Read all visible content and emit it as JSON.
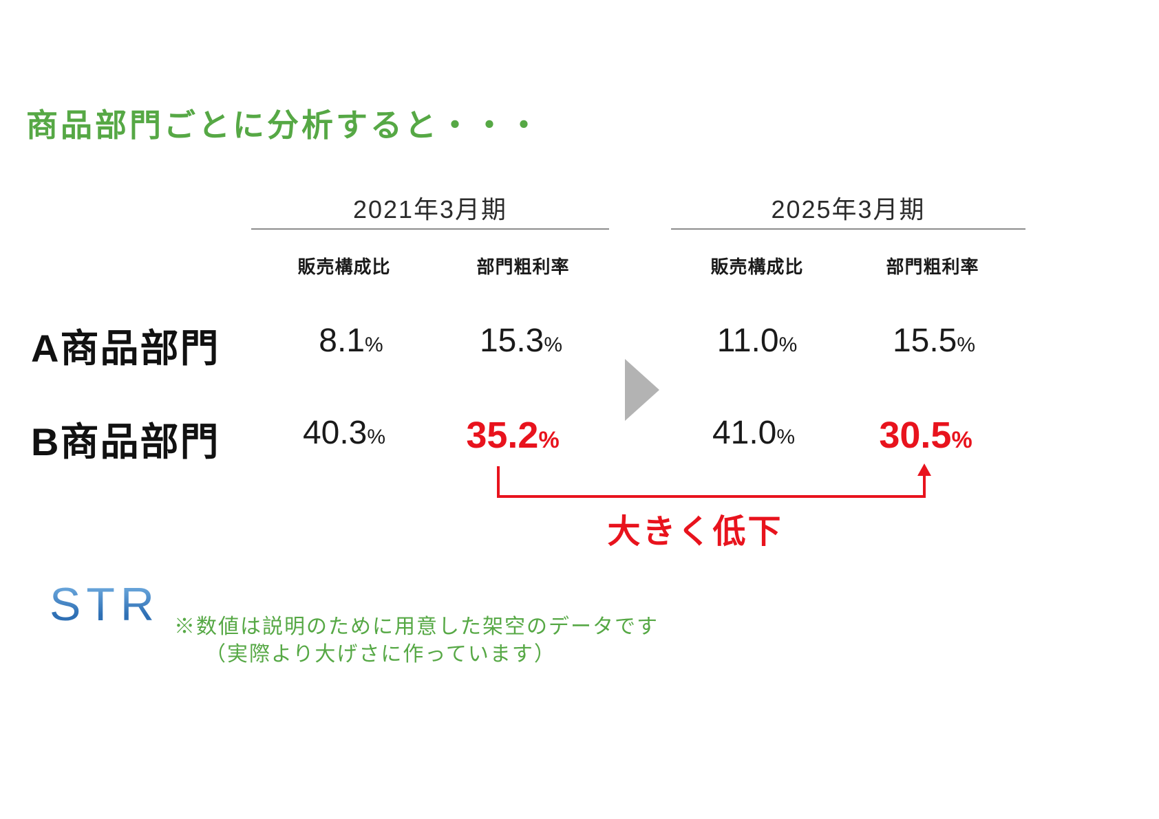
{
  "slide": {
    "title": "商品部門ごとに分析すると・・・",
    "colors": {
      "title_green": "#56a845",
      "accent_red": "#e8131d",
      "arrow_gray": "#b3b3b3",
      "logo_blue": "#2e6fb4",
      "rule_gray": "#8c8c8c",
      "text_black": "#1a1a1a"
    }
  },
  "table": {
    "period_headers": [
      {
        "label": "2021年3月期"
      },
      {
        "label": "2025年3月期"
      }
    ],
    "column_headers": [
      "販売構成比",
      "部門粗利率",
      "販売構成比",
      "部門粗利率"
    ],
    "rows": [
      {
        "label": "A商品部門",
        "values": [
          "8.1",
          "15.3",
          "11.0",
          "15.5"
        ]
      },
      {
        "label": "B商品部門",
        "values": [
          "40.3",
          "35.2",
          "41.0",
          "30.5"
        ]
      }
    ],
    "percent_sign": "%"
  },
  "annotation": {
    "label": "大きく低下"
  },
  "footer": {
    "logo": "STR",
    "note_line1": "※数値は説明のために用意した架空のデータです",
    "note_line2": "（実際より大げさに作っています）"
  }
}
